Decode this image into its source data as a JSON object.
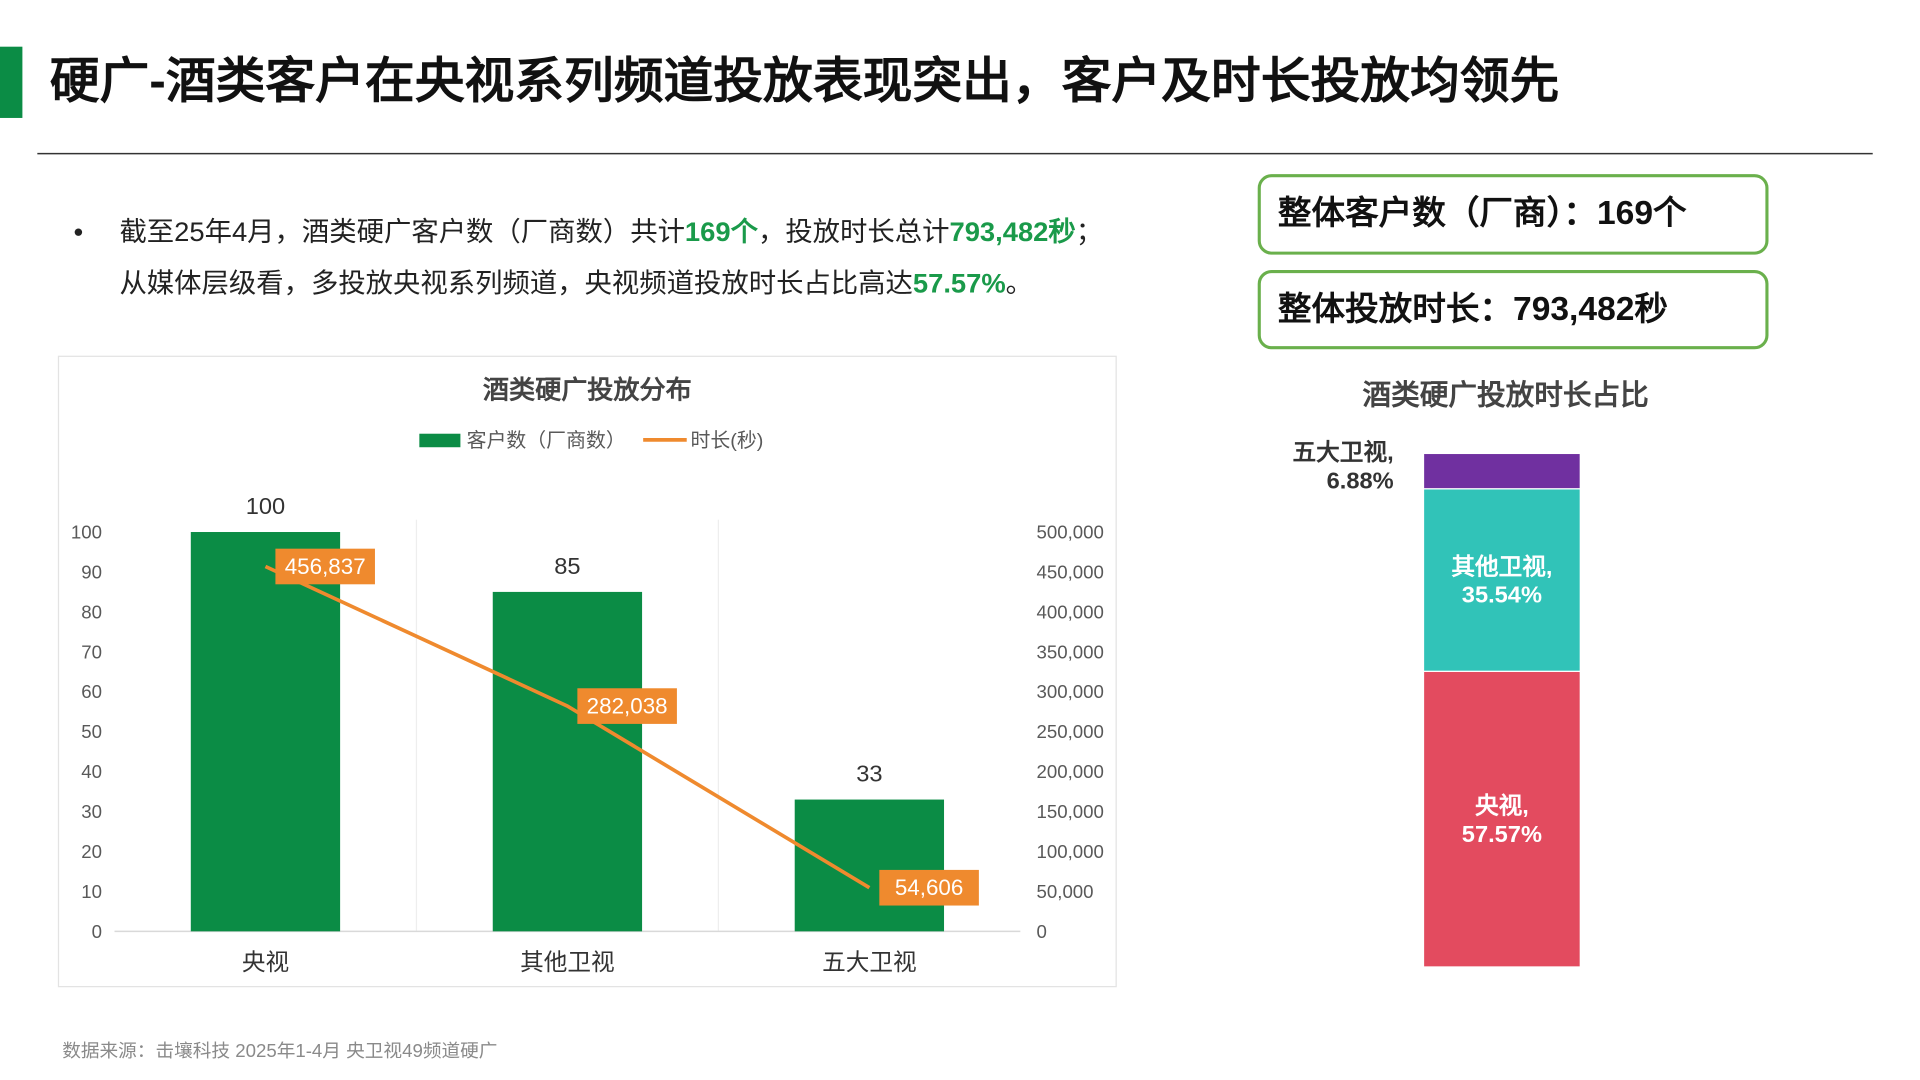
{
  "header": {
    "title": "硬广-酒类客户在央视系列频道投放表现突出，客户及时长投放均领先"
  },
  "bullets": [
    {
      "lines": [
        [
          {
            "text": "截至25年4月，酒类硬广客户数（厂商数）共计",
            "color": "#222222"
          },
          {
            "text": "169个",
            "color": "#1a9a4a",
            "bold": true
          },
          {
            "text": "，投放时长总计",
            "color": "#222222"
          },
          {
            "text": "793,482秒",
            "color": "#1a9a4a",
            "bold": true
          },
          {
            "text": "；",
            "color": "#222222"
          }
        ],
        [
          {
            "text": "从媒体层级看，多投放央视系列频道，央视频道投放时长占比高达",
            "color": "#222222"
          },
          {
            "text": "57.57%",
            "color": "#1a9a4a",
            "bold": true
          },
          {
            "text": "。",
            "color": "#222222"
          }
        ]
      ]
    }
  ],
  "kpis": [
    "整体客户数（厂商）：169个",
    "整体投放时长：793,482秒"
  ],
  "source": "数据来源：击壤科技 2025年1-4月 央卫视49频道硬广",
  "chart_data": [
    {
      "type": "combo",
      "title": "酒类硬广投放分布",
      "categories": [
        "央视",
        "其他卫视",
        "五大卫视"
      ],
      "series": [
        {
          "name": "客户数（厂商数）",
          "type": "bar",
          "color": "#0b8c45",
          "values": [
            100,
            85,
            33
          ]
        },
        {
          "name": "时长(秒)",
          "type": "line",
          "axis": "y2",
          "color": "#ef8a2e",
          "values": [
            456837,
            282038,
            54606
          ],
          "value_labels": [
            "456,837",
            "282,038",
            "54,606"
          ]
        }
      ],
      "ylim": [
        0,
        100
      ],
      "yticks": [
        0,
        10,
        20,
        30,
        40,
        50,
        60,
        70,
        80,
        90,
        100
      ],
      "y2lim": [
        0,
        500000
      ],
      "y2ticks": [
        0,
        {
          "value": 50000,
          "label": "50,000"
        },
        {
          "value": 100000,
          "label": "100,000"
        },
        {
          "value": 150000,
          "label": "150,000"
        },
        {
          "value": 200000,
          "label": "200,000"
        },
        {
          "value": 250000,
          "label": "250,000"
        },
        {
          "value": 300000,
          "label": "300,000"
        },
        {
          "value": 350000,
          "label": "350,000"
        },
        {
          "value": 400000,
          "label": "400,000"
        },
        {
          "value": 450000,
          "label": "450,000"
        },
        {
          "value": 500000,
          "label": "500,000"
        }
      ],
      "legend": "top"
    },
    {
      "type": "stacked",
      "title": "酒类硬广投放时长占比",
      "ylim": [
        0,
        100
      ],
      "series": [
        {
          "name": "央视,",
          "color": "#e34b5f",
          "values": [
            57.57
          ],
          "value_labels": [
            "57.57%"
          ]
        },
        {
          "name": "其他卫视,",
          "color": "#31c3b8",
          "values": [
            35.54
          ],
          "value_labels": [
            "35.54%"
          ]
        },
        {
          "name": "五大卫视,",
          "color": "#7030a0",
          "values": [
            6.88
          ],
          "value_labels": [
            "6.88%"
          ]
        }
      ]
    }
  ]
}
